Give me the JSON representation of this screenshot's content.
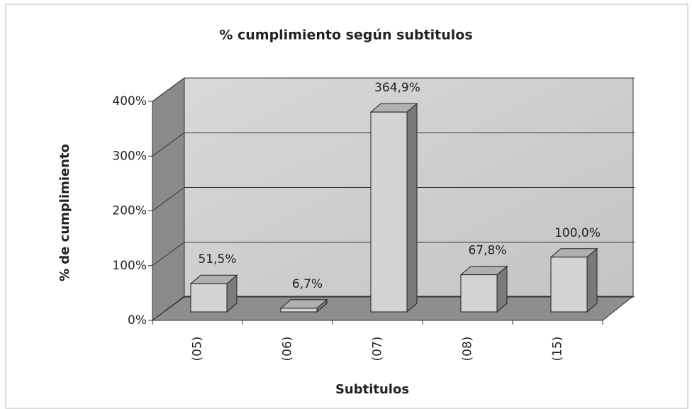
{
  "chart_data": {
    "type": "bar3d",
    "title": "% cumplimiento según subtitulos",
    "y_label": "% de cumplimiento",
    "x_label": "Subtitulos",
    "categories": [
      "(05)",
      "(06)",
      "(07)",
      "(08)",
      "(15)"
    ],
    "values": [
      51.5,
      6.7,
      364.9,
      67.8,
      100
    ],
    "value_labels": [
      "51,5%",
      "6,7%",
      "364,9%",
      "67,8%",
      "100,0%"
    ],
    "color": "#d4d4d4",
    "ylim": [
      0,
      400
    ],
    "yticks": [
      {
        "value": 0,
        "label": "0%"
      },
      {
        "value": 100,
        "label": "100%"
      },
      {
        "value": 200,
        "label": "200%"
      },
      {
        "value": 300,
        "label": "300%"
      },
      {
        "value": 400,
        "label": "400%"
      }
    ],
    "grid": true
  }
}
